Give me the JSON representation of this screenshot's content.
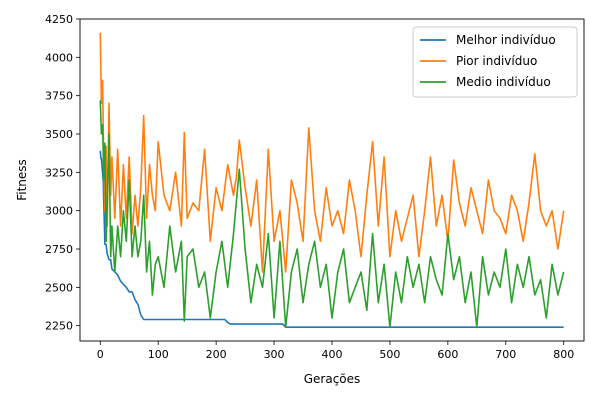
{
  "chart_data": {
    "type": "line",
    "title": "",
    "xlabel": "Gerações",
    "ylabel": "Fitness",
    "xlim": [
      -35,
      835
    ],
    "ylim": [
      2150,
      4250
    ],
    "xticks": [
      0,
      100,
      200,
      300,
      400,
      500,
      600,
      700,
      800
    ],
    "yticks": [
      2250,
      2500,
      2750,
      3000,
      3250,
      3500,
      3750,
      4000,
      4250
    ],
    "grid": false,
    "legend_position": "top-right",
    "series": [
      {
        "name": "Melhor indivíduo",
        "color": "#1f77b4",
        "x": [
          0,
          1,
          2,
          5,
          8,
          10,
          12,
          15,
          18,
          20,
          25,
          30,
          35,
          40,
          45,
          50,
          55,
          60,
          65,
          70,
          75,
          80,
          100,
          150,
          200,
          215,
          220,
          225,
          230,
          250,
          300,
          315,
          320,
          400,
          500,
          600,
          700,
          800
        ],
        "y": [
          3390,
          3340,
          3340,
          3200,
          2780,
          2780,
          2720,
          2680,
          2680,
          2620,
          2600,
          2580,
          2540,
          2520,
          2500,
          2470,
          2470,
          2420,
          2390,
          2320,
          2290,
          2290,
          2290,
          2290,
          2290,
          2290,
          2270,
          2260,
          2260,
          2260,
          2260,
          2260,
          2240,
          2240,
          2240,
          2240,
          2240,
          2240
        ]
      },
      {
        "name": "Pior indivíduo",
        "color": "#ff7f0e",
        "x": [
          0,
          2,
          4,
          6,
          8,
          10,
          12,
          15,
          18,
          20,
          25,
          30,
          35,
          40,
          45,
          50,
          55,
          60,
          65,
          70,
          75,
          80,
          85,
          90,
          95,
          100,
          110,
          120,
          130,
          140,
          145,
          150,
          160,
          170,
          180,
          190,
          200,
          210,
          220,
          230,
          235,
          240,
          250,
          260,
          270,
          280,
          290,
          300,
          310,
          320,
          330,
          340,
          350,
          360,
          370,
          380,
          390,
          400,
          410,
          420,
          430,
          440,
          450,
          460,
          470,
          480,
          490,
          500,
          510,
          520,
          530,
          540,
          550,
          560,
          570,
          580,
          590,
          600,
          610,
          620,
          630,
          640,
          650,
          660,
          670,
          680,
          690,
          700,
          710,
          720,
          730,
          740,
          750,
          760,
          770,
          780,
          790,
          800
        ],
        "y": [
          4160,
          3700,
          3850,
          3300,
          3000,
          3420,
          2900,
          3700,
          3100,
          3350,
          2950,
          3400,
          2900,
          3300,
          2950,
          3350,
          2850,
          3100,
          2900,
          3150,
          3620,
          2950,
          3300,
          3100,
          3000,
          3450,
          3100,
          3000,
          3250,
          2900,
          3510,
          2950,
          3050,
          3000,
          3400,
          2800,
          3150,
          3000,
          3300,
          3100,
          3220,
          3460,
          3150,
          2900,
          3200,
          2600,
          3400,
          2800,
          3000,
          2600,
          3200,
          3050,
          2800,
          3540,
          3000,
          2800,
          3150,
          2900,
          3000,
          2850,
          3200,
          3000,
          2700,
          3100,
          3450,
          2900,
          3350,
          2700,
          3000,
          2800,
          2950,
          3100,
          2700,
          3000,
          3350,
          2900,
          3100,
          2800,
          3330,
          3050,
          2900,
          3150,
          3000,
          2850,
          3200,
          3000,
          2950,
          2850,
          3100,
          3000,
          2800,
          3050,
          3370,
          3000,
          2900,
          3000,
          2750,
          3000
        ]
      },
      {
        "name": "Medio indivíduo",
        "color": "#2ca02c",
        "x": [
          0,
          2,
          4,
          6,
          8,
          10,
          12,
          15,
          18,
          20,
          25,
          30,
          35,
          40,
          45,
          50,
          55,
          60,
          65,
          70,
          75,
          80,
          85,
          90,
          95,
          100,
          110,
          120,
          130,
          140,
          145,
          150,
          160,
          170,
          180,
          190,
          200,
          210,
          220,
          230,
          240,
          250,
          260,
          270,
          280,
          290,
          300,
          310,
          320,
          330,
          340,
          350,
          360,
          370,
          380,
          390,
          400,
          410,
          420,
          430,
          440,
          450,
          460,
          470,
          480,
          490,
          500,
          510,
          520,
          530,
          540,
          550,
          560,
          570,
          580,
          590,
          600,
          610,
          620,
          630,
          640,
          650,
          660,
          670,
          680,
          690,
          700,
          710,
          720,
          730,
          740,
          750,
          760,
          770,
          780,
          790,
          800
        ],
        "y": [
          3720,
          3500,
          3560,
          3200,
          3440,
          2800,
          3020,
          3500,
          2700,
          2900,
          2600,
          2900,
          2700,
          3000,
          2800,
          3200,
          2700,
          2900,
          2700,
          2800,
          3100,
          2600,
          2800,
          2450,
          2650,
          2700,
          2500,
          2900,
          2600,
          2800,
          2280,
          2700,
          2750,
          2500,
          2600,
          2300,
          2600,
          2800,
          2500,
          2850,
          3270,
          2750,
          2400,
          2650,
          2500,
          2850,
          2300,
          2800,
          2240,
          2600,
          2750,
          2400,
          2650,
          2800,
          2500,
          2650,
          2300,
          2600,
          2750,
          2400,
          2500,
          2600,
          2350,
          2850,
          2400,
          2650,
          2240,
          2600,
          2400,
          2700,
          2500,
          2650,
          2400,
          2700,
          2550,
          2450,
          2850,
          2550,
          2700,
          2400,
          2600,
          2240,
          2700,
          2450,
          2600,
          2500,
          2750,
          2400,
          2650,
          2500,
          2700,
          2450,
          2550,
          2300,
          2650,
          2450,
          2600
        ]
      }
    ]
  }
}
